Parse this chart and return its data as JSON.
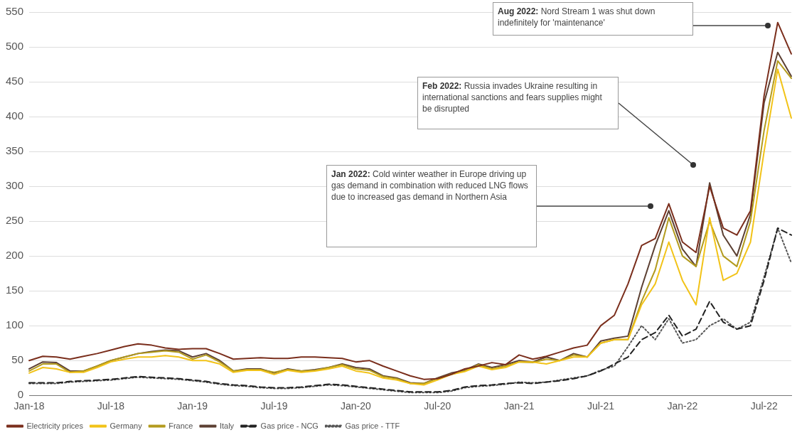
{
  "chart_data": {
    "type": "line",
    "categories": [
      "Jan-18",
      null,
      null,
      null,
      null,
      null,
      "Jul-18",
      null,
      null,
      null,
      null,
      null,
      "Jan-19",
      null,
      null,
      null,
      null,
      null,
      "Jul-19",
      null,
      null,
      null,
      null,
      null,
      "Jan-20",
      null,
      null,
      null,
      null,
      null,
      "Jul-20",
      null,
      null,
      null,
      null,
      null,
      "Jan-21",
      null,
      null,
      null,
      null,
      null,
      "Jul-21",
      null,
      null,
      null,
      null,
      null,
      "Jan-22",
      null,
      null,
      null,
      null,
      null,
      "Jul-22",
      null,
      null
    ],
    "series": [
      {
        "name": "Electricity prices",
        "color": "#7a2e1c",
        "line_style": "solid",
        "values": [
          50,
          56,
          55,
          52,
          56,
          60,
          65,
          70,
          74,
          72,
          68,
          66,
          67,
          67,
          60,
          52,
          53,
          54,
          53,
          53,
          55,
          55,
          54,
          53,
          48,
          50,
          42,
          35,
          28,
          23,
          24,
          30,
          38,
          42,
          47,
          44,
          58,
          52,
          56,
          62,
          68,
          72,
          100,
          115,
          160,
          215,
          225,
          275,
          220,
          205,
          300,
          240,
          230,
          265,
          430,
          535,
          490
        ]
      },
      {
        "name": "Germany",
        "color": "#f2c318",
        "line_style": "solid",
        "values": [
          32,
          40,
          38,
          33,
          33,
          40,
          48,
          52,
          55,
          55,
          57,
          55,
          50,
          50,
          45,
          33,
          36,
          36,
          30,
          36,
          33,
          35,
          38,
          42,
          35,
          32,
          25,
          22,
          17,
          15,
          22,
          30,
          34,
          42,
          37,
          40,
          48,
          48,
          45,
          50,
          55,
          55,
          75,
          80,
          80,
          130,
          160,
          220,
          165,
          130,
          255,
          165,
          175,
          220,
          350,
          468,
          398
        ]
      },
      {
        "name": "France",
        "color": "#b39b1e",
        "line_style": "solid",
        "values": [
          35,
          45,
          45,
          33,
          35,
          42,
          50,
          55,
          60,
          62,
          64,
          62,
          52,
          58,
          48,
          35,
          37,
          37,
          33,
          37,
          35,
          36,
          40,
          44,
          38,
          36,
          27,
          24,
          17,
          17,
          24,
          30,
          35,
          44,
          38,
          42,
          48,
          47,
          52,
          50,
          58,
          55,
          75,
          80,
          80,
          135,
          180,
          255,
          200,
          185,
          250,
          200,
          185,
          250,
          380,
          480,
          455
        ]
      },
      {
        "name": "Italy",
        "color": "#5c4033",
        "line_style": "solid",
        "values": [
          38,
          48,
          47,
          35,
          35,
          42,
          50,
          55,
          60,
          63,
          65,
          64,
          55,
          60,
          50,
          35,
          38,
          38,
          32,
          38,
          35,
          37,
          40,
          45,
          40,
          38,
          28,
          25,
          18,
          17,
          25,
          32,
          36,
          45,
          40,
          44,
          50,
          48,
          55,
          50,
          60,
          55,
          78,
          82,
          85,
          155,
          215,
          265,
          210,
          185,
          305,
          230,
          200,
          260,
          420,
          492,
          458
        ]
      },
      {
        "name": "Gas price - NCG",
        "color": "#222222",
        "line_style": "dashed",
        "values": [
          18,
          18,
          18,
          20,
          21,
          22,
          23,
          25,
          27,
          26,
          25,
          24,
          22,
          20,
          17,
          15,
          14,
          12,
          11,
          11,
          12,
          14,
          16,
          15,
          13,
          11,
          9,
          7,
          5,
          5,
          5,
          7,
          12,
          14,
          15,
          17,
          18,
          17,
          19,
          21,
          24,
          28,
          35,
          45,
          55,
          80,
          90,
          115,
          85,
          95,
          135,
          105,
          95,
          100,
          165,
          240,
          230
        ]
      },
      {
        "name": "Gas price - TTF",
        "color": "#555555",
        "line_style": "dotted",
        "values": [
          17,
          17,
          17,
          19,
          20,
          21,
          22,
          24,
          26,
          25,
          24,
          23,
          21,
          19,
          16,
          14,
          13,
          11,
          10,
          10,
          11,
          13,
          15,
          14,
          12,
          10,
          8,
          6,
          4,
          4,
          4,
          6,
          11,
          13,
          14,
          16,
          19,
          18,
          19,
          22,
          25,
          28,
          36,
          42,
          70,
          100,
          80,
          110,
          75,
          80,
          100,
          110,
          95,
          105,
          170,
          240,
          190
        ]
      }
    ],
    "ylim": [
      0,
      550
    ],
    "yticks": [
      0,
      50,
      100,
      150,
      200,
      250,
      300,
      350,
      400,
      450,
      500,
      550
    ],
    "grid": "y",
    "legend": "bottom",
    "marker": "none",
    "annotations": [
      "Aug 2022: Nord Stream 1 was shut down indefinitely for 'maintenance'",
      "Feb 2022: Russia invades Ukraine resulting in international sanctions and fears supplies might be disrupted",
      "Jan 2022: Cold winter weather in Europe driving up gas demand in combination with reduced LNG flows due to increased gas demand in Northern Asia"
    ]
  }
}
